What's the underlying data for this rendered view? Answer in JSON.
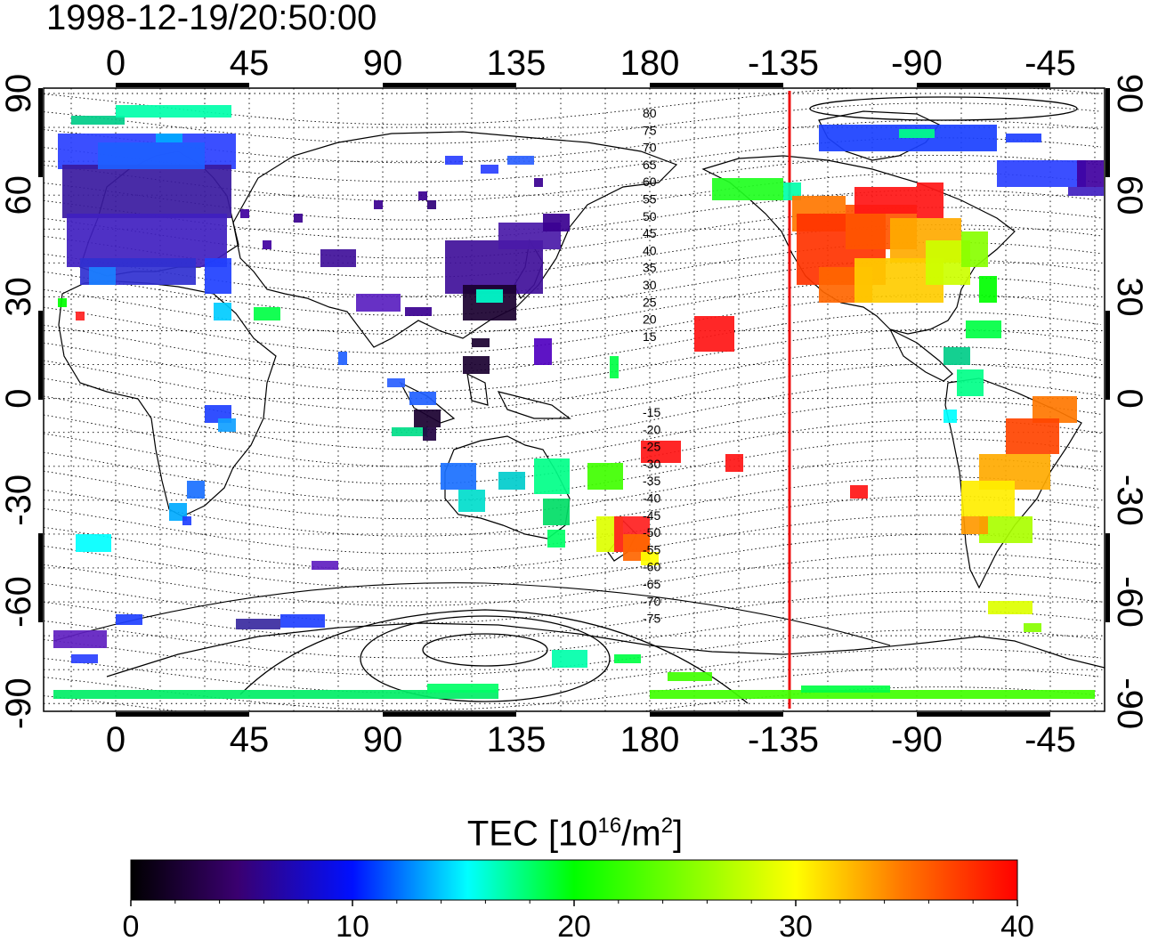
{
  "title": "1998-12-19/20:50:00",
  "map": {
    "lon_ticks": [
      "0",
      "45",
      "90",
      "135",
      "180",
      "-135",
      "-90",
      "-45"
    ],
    "lat_ticks": [
      "90",
      "60",
      "30",
      "0",
      "-30",
      "-60",
      "-90"
    ],
    "contour_labels_north": [
      "80",
      "75",
      "70",
      "65",
      "60",
      "55",
      "50",
      "45",
      "40",
      "35",
      "30",
      "25",
      "20",
      "15"
    ],
    "contour_labels_south": [
      "-15",
      "-20",
      "-25",
      "-30",
      "-35",
      "-40",
      "-45",
      "-50",
      "-55",
      "-60",
      "-65",
      "-70",
      "-75"
    ],
    "marker_line_longitude": "-130",
    "marker_line_color": "#ee1111"
  },
  "colorbar": {
    "label_main": "TEC  [10",
    "label_exp1": "16",
    "label_mid": "/m",
    "label_exp2": "2",
    "label_end": "]",
    "ticks": [
      "0",
      "10",
      "20",
      "30",
      "40"
    ],
    "range": [
      0,
      40
    ],
    "colors": [
      "#000000",
      "#4b0090",
      "#0010ff",
      "#00ffff",
      "#00ff00",
      "#ffff00",
      "#ff7700",
      "#ff0000"
    ]
  }
}
